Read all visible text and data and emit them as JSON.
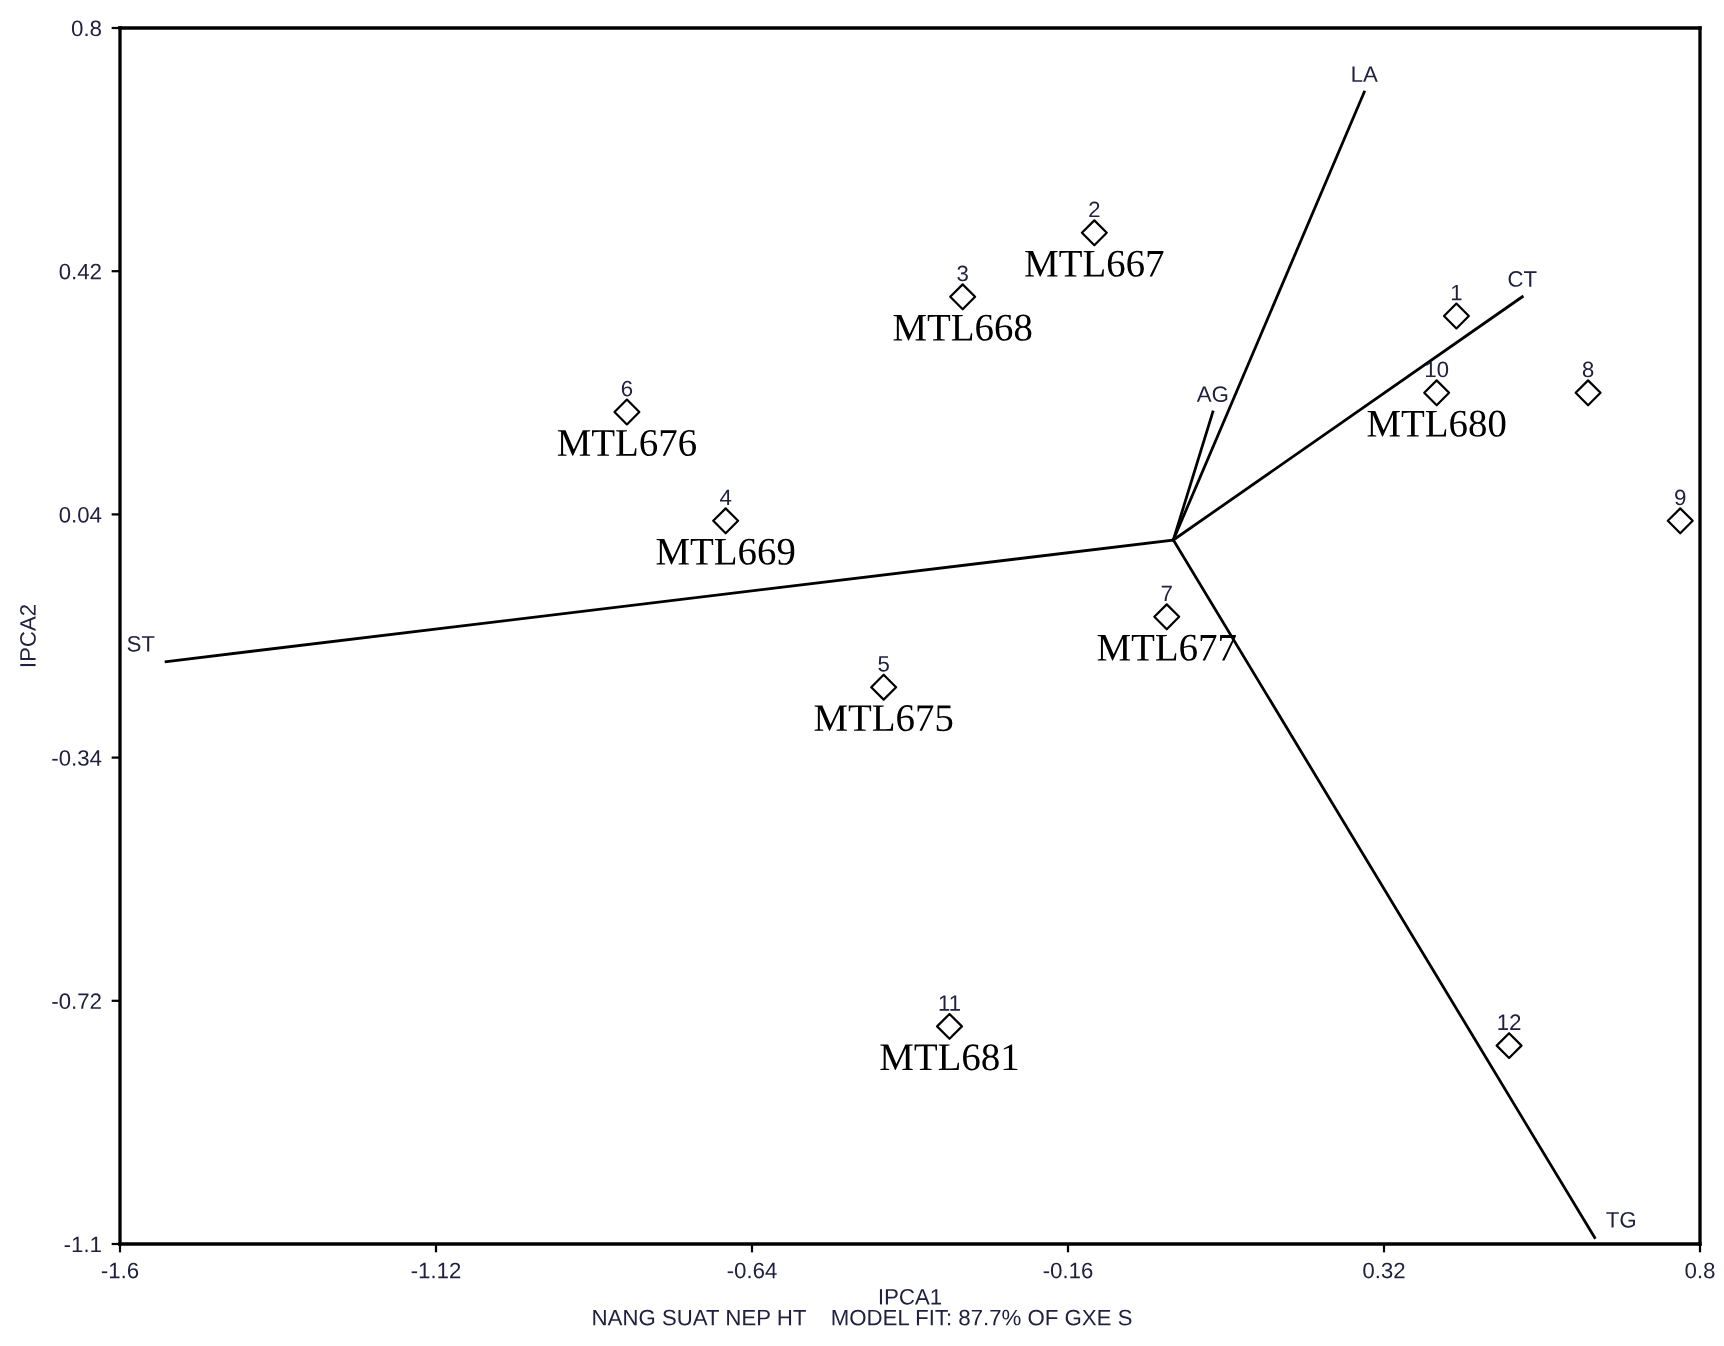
{
  "chart_data": {
    "type": "scatter",
    "xlabel": "IPCA1",
    "ylabel": "IPCA2",
    "xlim": [
      -1.6,
      0.8
    ],
    "ylim": [
      -1.1,
      0.8
    ],
    "xticks": [
      -1.6,
      -1.12,
      -0.64,
      -0.16,
      0.32,
      0.8
    ],
    "yticks": [
      0.8,
      0.42,
      0.04,
      -0.34,
      -0.72,
      -1.1
    ],
    "grid": false,
    "legend": false,
    "marker": "diamond",
    "series": [
      {
        "name": "1",
        "color": "#000000",
        "x": [
          0.43
        ],
        "values": [
          0.35
        ]
      },
      {
        "name": "2",
        "color": "#000000",
        "x": [
          -0.12
        ],
        "values": [
          0.48
        ]
      },
      {
        "name": "3",
        "color": "#000000",
        "x": [
          -0.32
        ],
        "values": [
          0.38
        ]
      },
      {
        "name": "4",
        "color": "#000000",
        "x": [
          -0.68
        ],
        "values": [
          0.03
        ]
      },
      {
        "name": "5",
        "color": "#000000",
        "x": [
          -0.44
        ],
        "values": [
          -0.23
        ]
      },
      {
        "name": "6",
        "color": "#000000",
        "x": [
          -0.83
        ],
        "values": [
          0.2
        ]
      },
      {
        "name": "7",
        "color": "#000000",
        "x": [
          -0.01
        ],
        "values": [
          -0.12
        ]
      },
      {
        "name": "8",
        "color": "#000000",
        "x": [
          0.63
        ],
        "values": [
          0.23
        ]
      },
      {
        "name": "9",
        "color": "#000000",
        "x": [
          0.77
        ],
        "values": [
          0.03
        ]
      },
      {
        "name": "10",
        "color": "#000000",
        "x": [
          0.4
        ],
        "values": [
          0.23
        ]
      },
      {
        "name": "11",
        "color": "#000000",
        "x": [
          -0.34
        ],
        "values": [
          -0.76
        ]
      },
      {
        "name": "12",
        "color": "#000000",
        "x": [
          0.51
        ],
        "values": [
          -0.79
        ]
      },
      {
        "type": "line",
        "name": "LA",
        "color": "#000000",
        "marker": "none",
        "x": [
          0,
          0.29
        ],
        "values": [
          0,
          0.7
        ]
      },
      {
        "type": "line",
        "name": "CT",
        "color": "#000000",
        "marker": "none",
        "x": [
          0,
          0.53
        ],
        "values": [
          0,
          0.38
        ]
      },
      {
        "type": "line",
        "name": "AG",
        "color": "#000000",
        "marker": "none",
        "x": [
          0,
          0.06
        ],
        "values": [
          0,
          0.2
        ]
      },
      {
        "type": "line",
        "name": "ST",
        "color": "#000000",
        "marker": "none",
        "x": [
          0,
          -1.53
        ],
        "values": [
          0,
          -0.19
        ]
      },
      {
        "type": "line",
        "name": "TG",
        "color": "#000000",
        "marker": "none",
        "x": [
          0,
          0.64
        ],
        "values": [
          0,
          -1.09
        ]
      }
    ],
    "annotations": [
      {
        "text": "MTL667",
        "x": -0.12,
        "y": 0.48
      },
      {
        "text": "MTL668",
        "x": -0.32,
        "y": 0.38
      },
      {
        "text": "MTL676",
        "x": -0.83,
        "y": 0.2
      },
      {
        "text": "MTL669",
        "x": -0.68,
        "y": 0.03
      },
      {
        "text": "MTL677",
        "x": -0.01,
        "y": -0.12
      },
      {
        "text": "MTL675",
        "x": -0.44,
        "y": -0.23
      },
      {
        "text": "MTL680",
        "x": 0.4,
        "y": 0.23
      },
      {
        "text": "MTL681",
        "x": -0.34,
        "y": -0.76
      },
      "NANG SUAT NEP HT    MODEL FIT: 87.7% OF GXE S"
    ]
  }
}
